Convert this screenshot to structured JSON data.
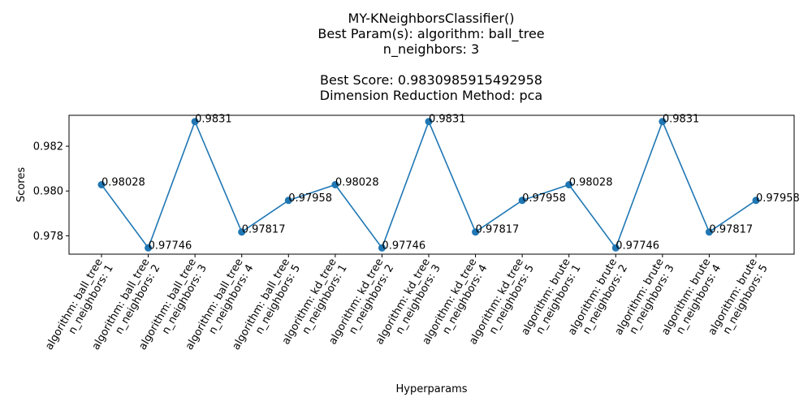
{
  "chart_data": {
    "type": "line",
    "title_lines": [
      "MY-KNeighborsClassifier()",
      "Best Param(s): algorithm: ball_tree",
      "n_neighbors: 3",
      "",
      "Best Score: 0.9830985915492958",
      "Dimension Reduction Method: pca"
    ],
    "xlabel": "Hyperparams",
    "ylabel": "Scores",
    "categories": [
      [
        "algorithm: ball_tree",
        "n_neighbors: 1"
      ],
      [
        "algorithm: ball_tree",
        "n_neighbors: 2"
      ],
      [
        "algorithm: ball_tree",
        "n_neighbors: 3"
      ],
      [
        "algorithm: ball_tree",
        "n_neighbors: 4"
      ],
      [
        "algorithm: ball_tree",
        "n_neighbors: 5"
      ],
      [
        "algorithm: kd_tree",
        "n_neighbors: 1"
      ],
      [
        "algorithm: kd_tree",
        "n_neighbors: 2"
      ],
      [
        "algorithm: kd_tree",
        "n_neighbors: 3"
      ],
      [
        "algorithm: kd_tree",
        "n_neighbors: 4"
      ],
      [
        "algorithm: kd_tree",
        "n_neighbors: 5"
      ],
      [
        "algorithm: brute",
        "n_neighbors: 1"
      ],
      [
        "algorithm: brute",
        "n_neighbors: 2"
      ],
      [
        "algorithm: brute",
        "n_neighbors: 3"
      ],
      [
        "algorithm: brute",
        "n_neighbors: 4"
      ],
      [
        "algorithm: brute",
        "n_neighbors: 5"
      ]
    ],
    "values": [
      0.98028,
      0.97746,
      0.9831,
      0.97817,
      0.97958,
      0.98028,
      0.97746,
      0.9831,
      0.97817,
      0.97958,
      0.98028,
      0.97746,
      0.9831,
      0.97817,
      0.97958
    ],
    "value_labels": [
      "0.98028",
      "0.97746",
      "0.9831",
      "0.97817",
      "0.97958",
      "0.98028",
      "0.97746",
      "0.9831",
      "0.97817",
      "0.97958",
      "0.98028",
      "0.97746",
      "0.9831",
      "0.97817",
      "0.97958"
    ],
    "ylim": [
      0.97718,
      0.98338
    ],
    "yticks": [
      0.978,
      0.98,
      0.982
    ],
    "ytick_labels": [
      "0.978",
      "0.980",
      "0.982"
    ],
    "line_color": "#1f77b4",
    "grid": false
  }
}
